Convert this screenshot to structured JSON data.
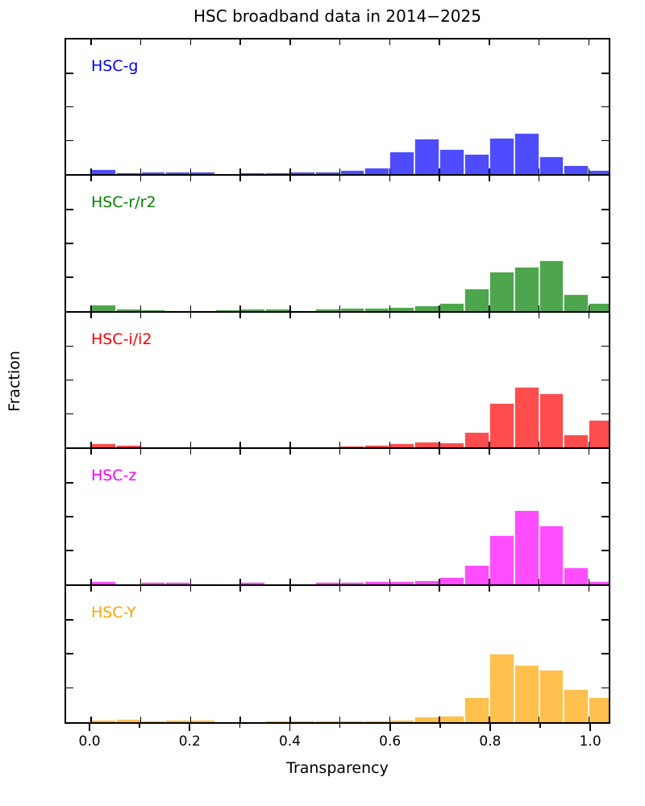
{
  "title": "HSC broadband data in 2014−2025",
  "xlabel": "Transparency",
  "ylabel": "Fraction",
  "x_axis": {
    "tick_labels": [
      "0.0",
      "0.2",
      "0.4",
      "0.6",
      "0.8",
      "1.0"
    ],
    "labeled_tick_values": [
      0.0,
      0.2,
      0.4,
      0.6,
      0.8,
      1.0
    ],
    "minor_tick_step": 0.1,
    "xlim": [
      -0.05,
      1.04
    ]
  },
  "y_axis": {
    "ylim_per_panel": [
      0,
      0.4
    ],
    "tick_values": [
      0.1,
      0.2,
      0.3
    ],
    "tick_labels_shown": false
  },
  "chart_data": {
    "type": "bar",
    "subtype": "histogram",
    "layout": "5 vertically stacked panels sharing the x axis",
    "grid": false,
    "legend": "in-panel colored text labels, top-left",
    "bin_width": 0.05,
    "bin_edges": [
      0.0,
      0.05,
      0.1,
      0.15,
      0.2,
      0.25,
      0.3,
      0.35,
      0.4,
      0.45,
      0.5,
      0.55,
      0.6,
      0.65,
      0.7,
      0.75,
      0.8,
      0.85,
      0.9,
      0.95,
      1.0,
      1.05
    ],
    "title": "HSC broadband data in 2014−2025",
    "xlabel": "Transparency",
    "ylabel": "Fraction",
    "series": [
      {
        "name": "HSC-g",
        "label_color": "#0000ff",
        "bar_color": "#4d4dff",
        "values": [
          0.016,
          0.006,
          0.008,
          0.008,
          0.008,
          0.0,
          0.006,
          0.006,
          0.007,
          0.008,
          0.014,
          0.019,
          0.068,
          0.106,
          0.075,
          0.061,
          0.108,
          0.122,
          0.054,
          0.028,
          0.012
        ]
      },
      {
        "name": "HSC-r/r2",
        "label_color": "#008000",
        "bar_color": "#4da64d",
        "values": [
          0.019,
          0.007,
          0.004,
          0.003,
          0.002,
          0.005,
          0.006,
          0.006,
          0.003,
          0.007,
          0.009,
          0.009,
          0.011,
          0.017,
          0.023,
          0.066,
          0.116,
          0.132,
          0.15,
          0.049,
          0.023
        ]
      },
      {
        "name": "HSC-i/i2",
        "label_color": "#ff0000",
        "bar_color": "#ff4d4d",
        "values": [
          0.012,
          0.007,
          0.002,
          0.002,
          0.002,
          0.002,
          0.002,
          0.002,
          0.002,
          0.004,
          0.005,
          0.007,
          0.012,
          0.016,
          0.014,
          0.045,
          0.131,
          0.18,
          0.161,
          0.038,
          0.081
        ]
      },
      {
        "name": "HSC-z",
        "label_color": "#ff00ff",
        "bar_color": "#ff4dff",
        "values": [
          0.009,
          0.002,
          0.005,
          0.005,
          0.002,
          0.0,
          0.005,
          0.0,
          0.002,
          0.005,
          0.007,
          0.009,
          0.008,
          0.012,
          0.021,
          0.056,
          0.145,
          0.22,
          0.174,
          0.048,
          0.009
        ]
      },
      {
        "name": "HSC-Y",
        "label_color": "#ffa500",
        "bar_color": "#ffc04d",
        "values": [
          0.007,
          0.009,
          0.005,
          0.007,
          0.007,
          0.0,
          0.0,
          0.005,
          0.005,
          0.005,
          0.005,
          0.005,
          0.007,
          0.016,
          0.019,
          0.072,
          0.201,
          0.168,
          0.153,
          0.096,
          0.072
        ]
      }
    ]
  }
}
